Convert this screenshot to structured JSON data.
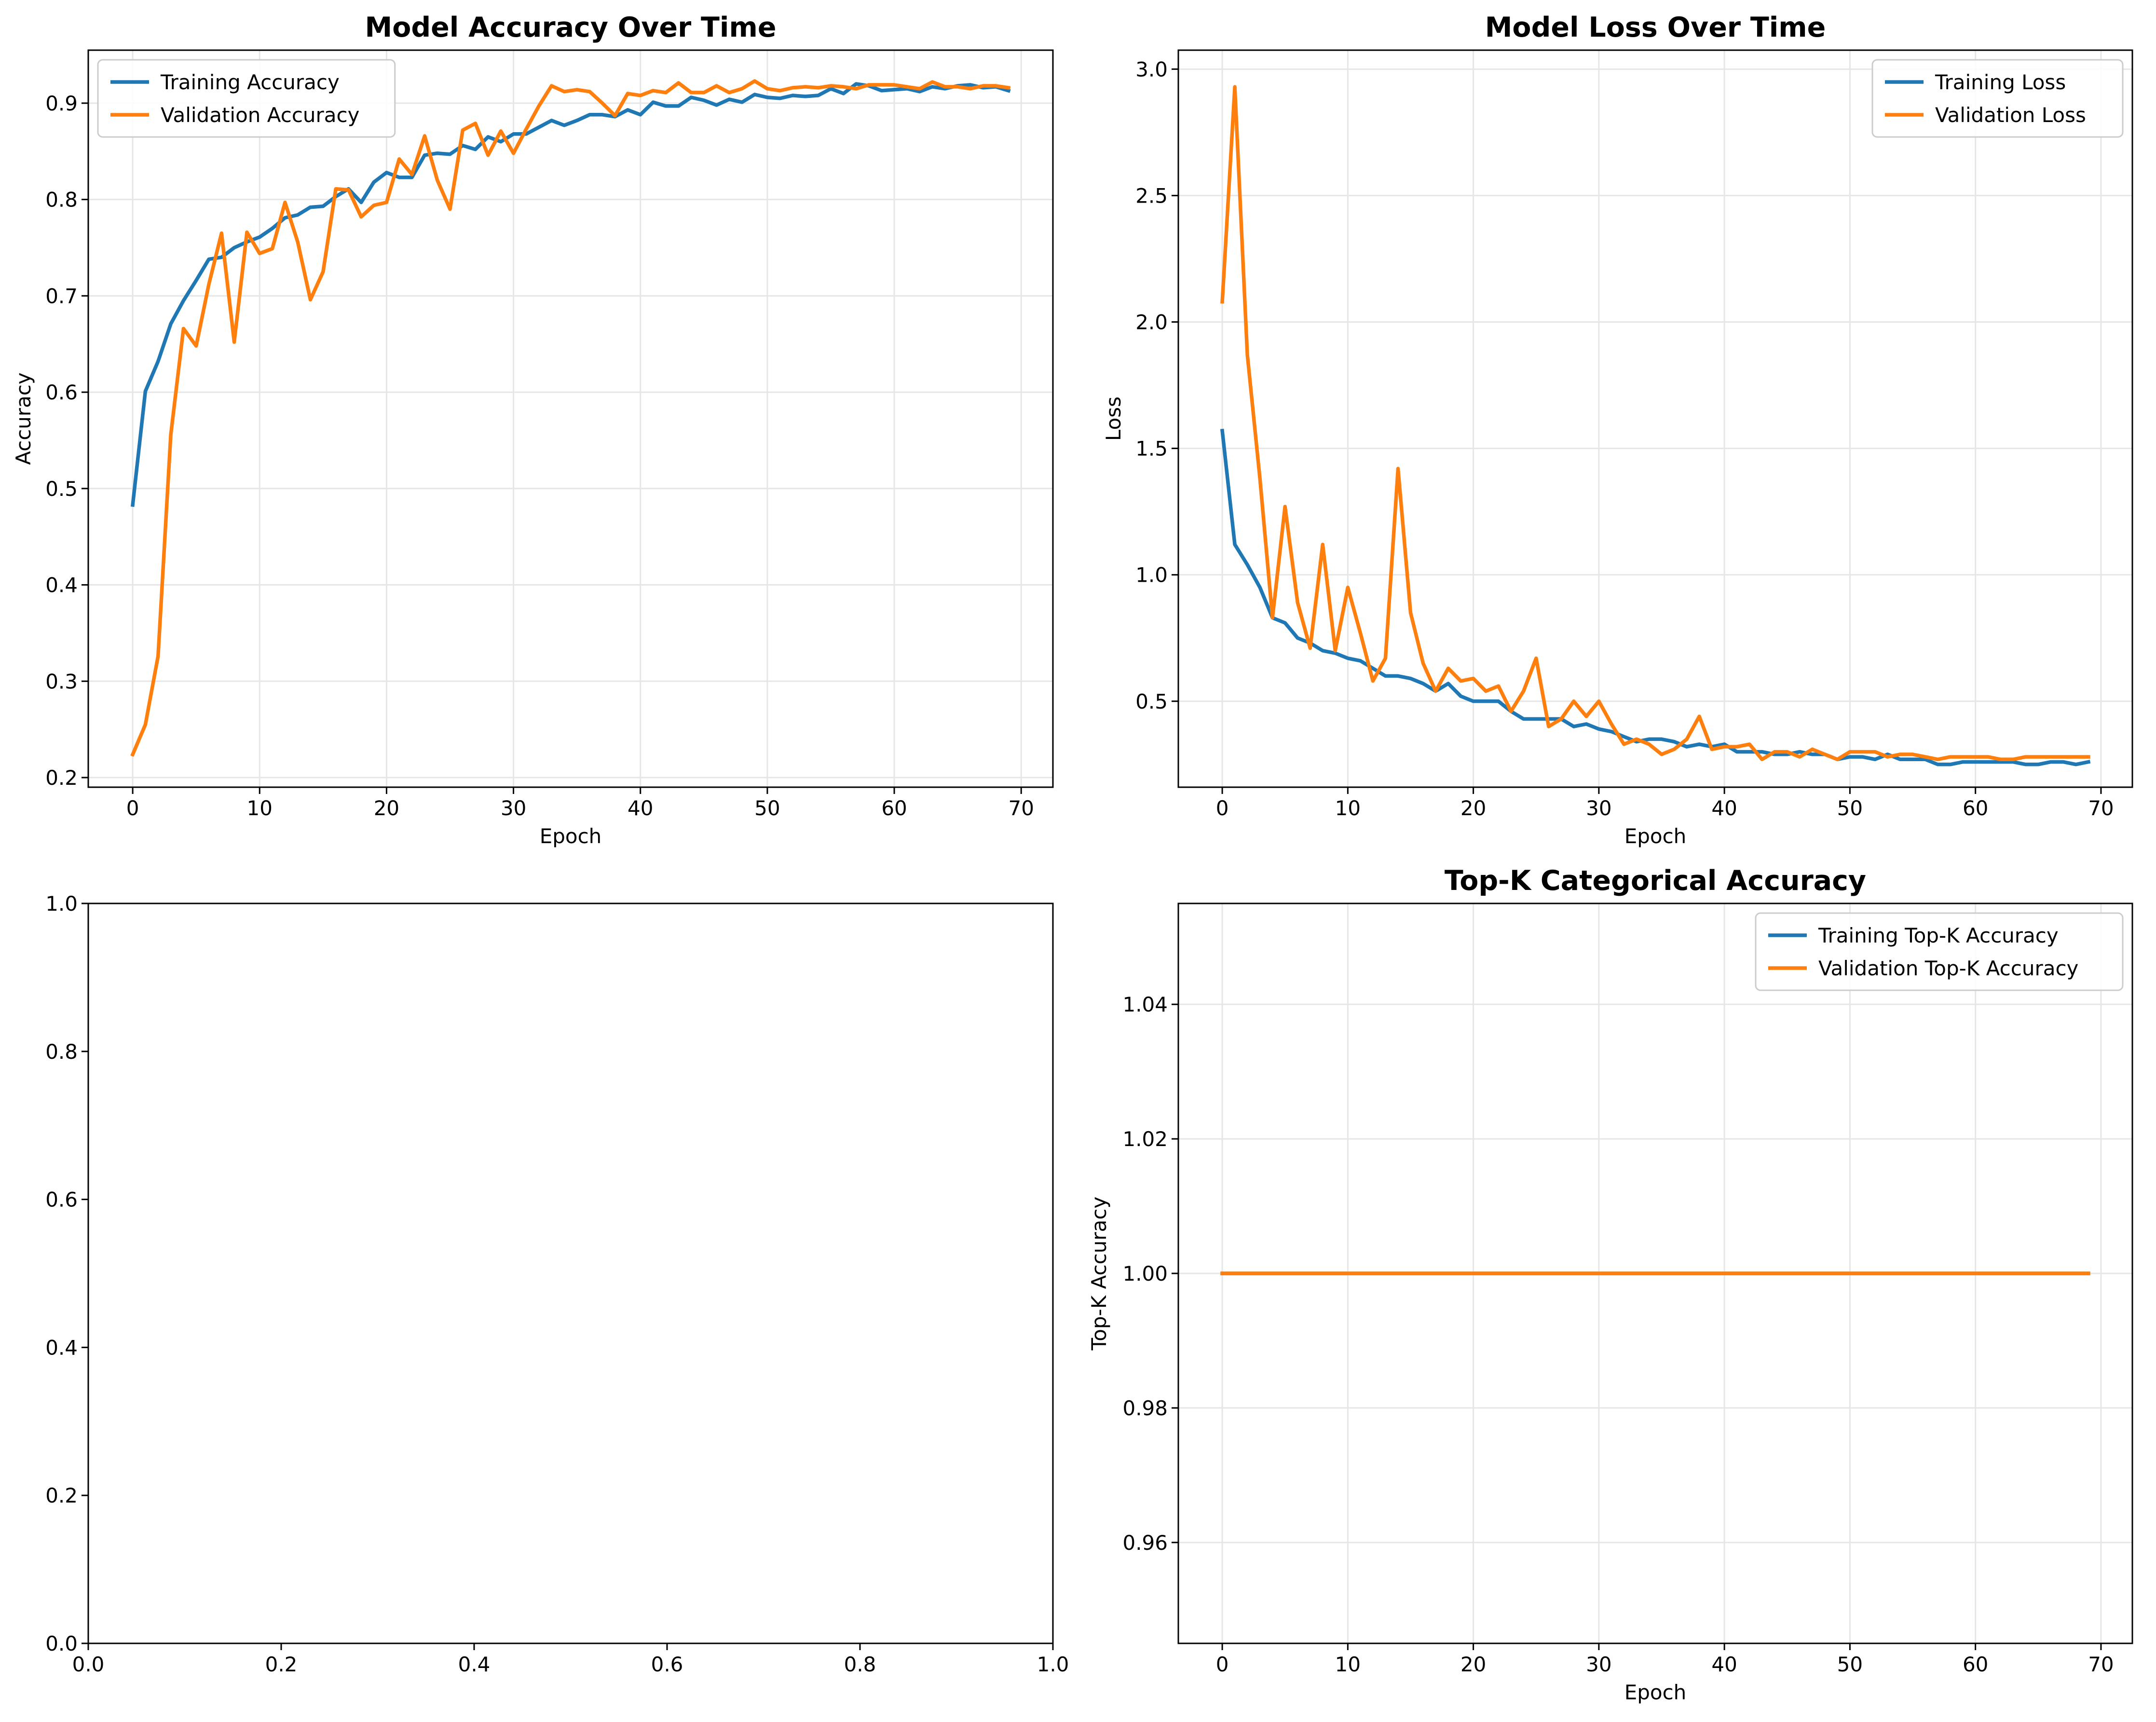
{
  "colors": {
    "training": "#1f77b4",
    "validation": "#ff7f0e",
    "grid": "#e6e6e6"
  },
  "chart_data": [
    {
      "type": "line",
      "title": "Model Accuracy Over Time",
      "xlabel": "Epoch",
      "ylabel": "Accuracy",
      "xlim": [
        -3.5,
        72.5
      ],
      "ylim": [
        0.19,
        0.955
      ],
      "xticks": [
        0,
        10,
        20,
        30,
        40,
        50,
        60,
        70
      ],
      "yticks": [
        0.2,
        0.3,
        0.4,
        0.5,
        0.6,
        0.7,
        0.8,
        0.9
      ],
      "grid": true,
      "legend": "upper-left",
      "series": [
        {
          "name": "Training Accuracy",
          "color": "#1f77b4",
          "values": [
            0.483,
            0.601,
            0.632,
            0.671,
            0.695,
            0.716,
            0.738,
            0.74,
            0.75,
            0.756,
            0.761,
            0.77,
            0.781,
            0.784,
            0.792,
            0.793,
            0.803,
            0.811,
            0.797,
            0.818,
            0.828,
            0.823,
            0.823,
            0.846,
            0.848,
            0.847,
            0.856,
            0.852,
            0.865,
            0.86,
            0.868,
            0.868,
            0.875,
            0.882,
            0.877,
            0.882,
            0.888,
            0.888,
            0.886,
            0.893,
            0.888,
            0.901,
            0.897,
            0.897,
            0.906,
            0.903,
            0.898,
            0.904,
            0.901,
            0.909,
            0.906,
            0.905,
            0.908,
            0.907,
            0.908,
            0.915,
            0.91,
            0.92,
            0.918,
            0.913,
            0.914,
            0.915,
            0.912,
            0.917,
            0.915,
            0.918,
            0.919,
            0.916,
            0.917,
            0.913
          ]
        },
        {
          "name": "Validation Accuracy",
          "color": "#ff7f0e",
          "values": [
            0.224,
            0.255,
            0.326,
            0.556,
            0.666,
            0.648,
            0.712,
            0.765,
            0.652,
            0.766,
            0.744,
            0.749,
            0.797,
            0.756,
            0.696,
            0.725,
            0.811,
            0.81,
            0.782,
            0.794,
            0.797,
            0.842,
            0.826,
            0.866,
            0.82,
            0.79,
            0.872,
            0.879,
            0.846,
            0.871,
            0.848,
            0.873,
            0.897,
            0.918,
            0.912,
            0.914,
            0.912,
            0.9,
            0.887,
            0.91,
            0.908,
            0.913,
            0.911,
            0.921,
            0.911,
            0.911,
            0.918,
            0.911,
            0.915,
            0.923,
            0.915,
            0.913,
            0.916,
            0.917,
            0.916,
            0.918,
            0.917,
            0.915,
            0.919,
            0.919,
            0.919,
            0.917,
            0.915,
            0.922,
            0.917,
            0.917,
            0.915,
            0.918,
            0.918,
            0.916
          ]
        }
      ]
    },
    {
      "type": "line",
      "title": "Model Loss Over Time",
      "xlabel": "Epoch",
      "ylabel": "Loss",
      "xlim": [
        -3.5,
        72.5
      ],
      "ylim": [
        0.16,
        3.075
      ],
      "xticks": [
        0,
        10,
        20,
        30,
        40,
        50,
        60,
        70
      ],
      "yticks": [
        0.5,
        1.0,
        1.5,
        2.0,
        2.5,
        3.0
      ],
      "grid": true,
      "legend": "upper-right",
      "series": [
        {
          "name": "Training Loss",
          "color": "#1f77b4",
          "values": [
            1.57,
            1.12,
            1.04,
            0.95,
            0.83,
            0.81,
            0.75,
            0.73,
            0.7,
            0.69,
            0.67,
            0.66,
            0.63,
            0.6,
            0.6,
            0.59,
            0.57,
            0.54,
            0.57,
            0.52,
            0.5,
            0.5,
            0.5,
            0.46,
            0.43,
            0.43,
            0.43,
            0.43,
            0.4,
            0.41,
            0.39,
            0.38,
            0.36,
            0.34,
            0.35,
            0.35,
            0.34,
            0.32,
            0.33,
            0.32,
            0.33,
            0.3,
            0.3,
            0.3,
            0.29,
            0.29,
            0.3,
            0.29,
            0.29,
            0.27,
            0.28,
            0.28,
            0.27,
            0.29,
            0.27,
            0.27,
            0.27,
            0.25,
            0.25,
            0.26,
            0.26,
            0.26,
            0.26,
            0.26,
            0.25,
            0.25,
            0.26,
            0.26,
            0.25,
            0.26
          ]
        },
        {
          "name": "Validation Loss",
          "color": "#ff7f0e",
          "values": [
            2.08,
            2.93,
            1.87,
            1.38,
            0.83,
            1.27,
            0.89,
            0.71,
            1.12,
            0.7,
            0.95,
            0.77,
            0.58,
            0.67,
            1.42,
            0.85,
            0.65,
            0.54,
            0.63,
            0.58,
            0.59,
            0.54,
            0.56,
            0.46,
            0.54,
            0.67,
            0.4,
            0.43,
            0.5,
            0.44,
            0.5,
            0.41,
            0.33,
            0.35,
            0.33,
            0.29,
            0.31,
            0.35,
            0.44,
            0.31,
            0.32,
            0.32,
            0.33,
            0.27,
            0.3,
            0.3,
            0.28,
            0.31,
            0.29,
            0.27,
            0.3,
            0.3,
            0.3,
            0.28,
            0.29,
            0.29,
            0.28,
            0.27,
            0.28,
            0.28,
            0.28,
            0.28,
            0.27,
            0.27,
            0.28,
            0.28,
            0.28,
            0.28,
            0.28,
            0.28
          ]
        }
      ]
    },
    {
      "type": "line",
      "title": "",
      "xlabel": "",
      "ylabel": "",
      "xlim": [
        0.0,
        1.0
      ],
      "ylim": [
        0.0,
        1.0
      ],
      "xticks": [
        0.0,
        0.2,
        0.4,
        0.6,
        0.8,
        1.0
      ],
      "yticks": [
        0.0,
        0.2,
        0.4,
        0.6,
        0.8,
        1.0
      ],
      "grid": false,
      "series": []
    },
    {
      "type": "line",
      "title": "Top-K Categorical Accuracy",
      "xlabel": "Epoch",
      "ylabel": "Top-K Accuracy",
      "xlim": [
        -3.5,
        72.5
      ],
      "ylim": [
        0.945,
        1.055
      ],
      "xticks": [
        0,
        10,
        20,
        30,
        40,
        50,
        60,
        70
      ],
      "yticks": [
        0.96,
        0.98,
        1.0,
        1.02,
        1.04
      ],
      "grid": true,
      "legend": "upper-right",
      "series": [
        {
          "name": "Training Top-K Accuracy",
          "color": "#1f77b4",
          "constant": 1.0,
          "count": 70
        },
        {
          "name": "Validation Top-K Accuracy",
          "color": "#ff7f0e",
          "constant": 1.0,
          "count": 70
        }
      ]
    }
  ]
}
